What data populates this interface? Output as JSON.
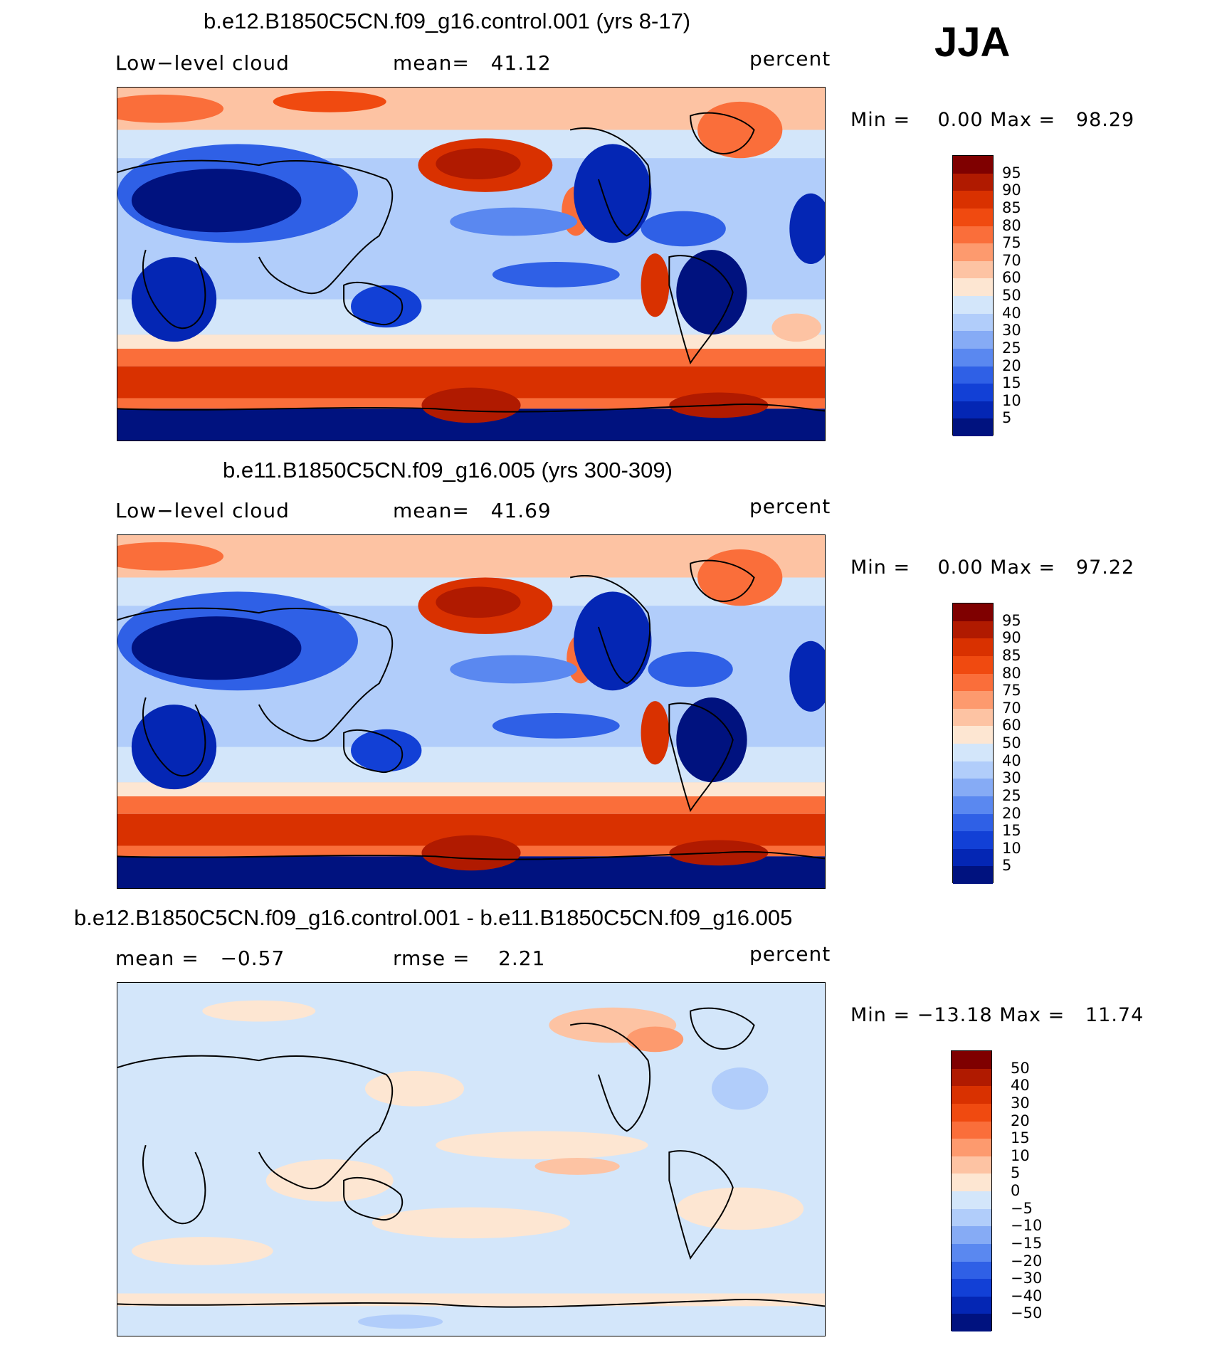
{
  "season": "JJA",
  "panels": [
    {
      "title": "b.e12.B1850C5CN.f09_g16.control.001 (yrs 8-17)",
      "left_label": "Low−level cloud",
      "mid_label": "mean=",
      "mid_value": "41.12",
      "right_label": "percent",
      "minmax": "Min =    0.00 Max =   98.29",
      "kind": "field"
    },
    {
      "title": "b.e11.B1850C5CN.f09_g16.005 (yrs 300-309)",
      "left_label": "Low−level cloud",
      "mid_label": "mean=",
      "mid_value": "41.69",
      "right_label": "percent",
      "minmax": "Min =    0.00 Max =   97.22",
      "kind": "field"
    },
    {
      "title": "b.e12.B1850C5CN.f09_g16.control.001 - b.e11.B1850C5CN.f09_g16.005",
      "left_label": "mean =   −0.57",
      "mid_label": "rmse =",
      "mid_value": "2.21",
      "right_label": "percent",
      "minmax": "Min = −13.18 Max =   11.74",
      "kind": "diff"
    }
  ],
  "colorbar_field": {
    "labels": [
      "95",
      "90",
      "85",
      "80",
      "75",
      "70",
      "60",
      "50",
      "40",
      "30",
      "25",
      "20",
      "15",
      "10",
      "5"
    ],
    "colors": [
      "#7f0000",
      "#b01a00",
      "#d93100",
      "#f04a10",
      "#fa6e3a",
      "#fd9a6e",
      "#fdc3a3",
      "#fde6d2",
      "#d3e6fa",
      "#b1cdfa",
      "#86abf5",
      "#5a88f0",
      "#2f60e6",
      "#1240d6",
      "#0426b4",
      "#00127f"
    ]
  },
  "colorbar_diff": {
    "labels": [
      "50",
      "40",
      "30",
      "20",
      "15",
      "10",
      "5",
      "0",
      "−5",
      "−10",
      "−15",
      "−20",
      "−30",
      "−40",
      "−50"
    ],
    "colors": [
      "#7f0000",
      "#b01a00",
      "#d93100",
      "#f04a10",
      "#fa6e3a",
      "#fd9a6e",
      "#fdc3a3",
      "#fde6d2",
      "#d3e6fa",
      "#b1cdfa",
      "#86abf5",
      "#5a88f0",
      "#2f60e6",
      "#1240d6",
      "#0426b4",
      "#00127f"
    ]
  }
}
